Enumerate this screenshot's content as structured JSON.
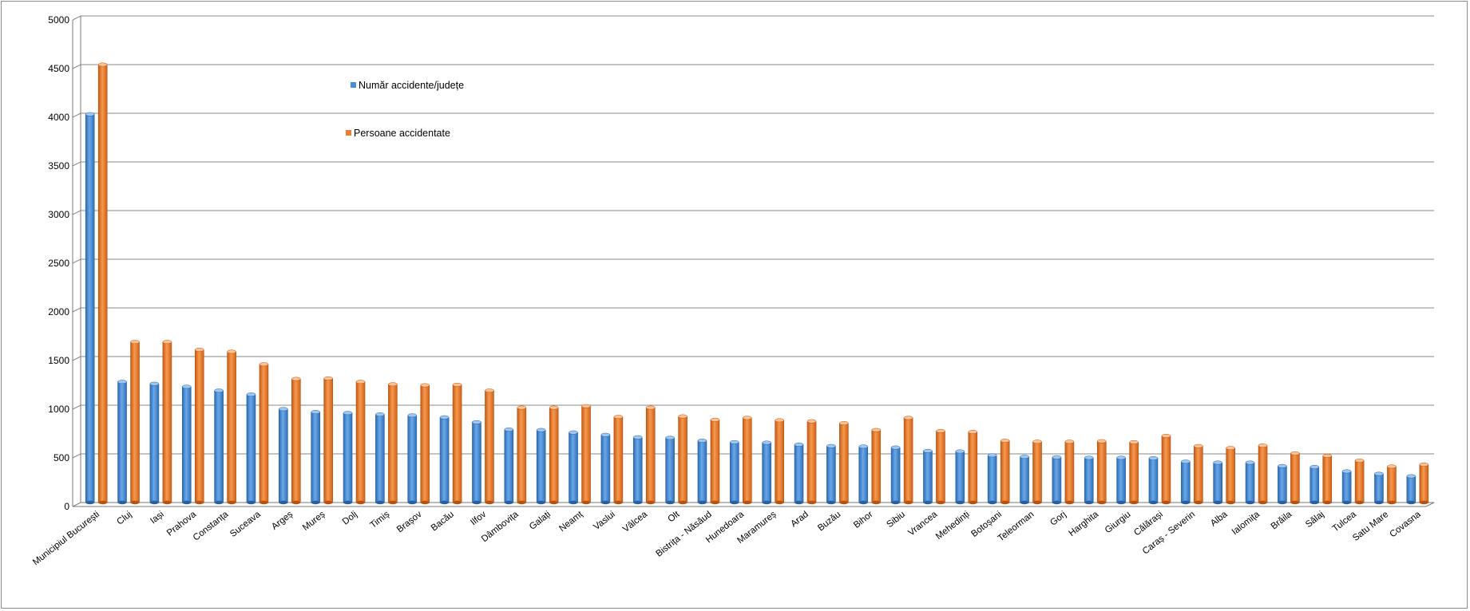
{
  "chart_data": {
    "type": "bar",
    "title": "",
    "xlabel": "",
    "ylabel": "",
    "ylim": [
      0,
      5000
    ],
    "yticks": [
      0,
      500,
      1000,
      1500,
      2000,
      2500,
      3000,
      3500,
      4000,
      4500,
      5000
    ],
    "grid": true,
    "legend_position": "top-left",
    "categories": [
      "Municipiul București",
      "Cluj",
      "Iași",
      "Prahova",
      "Constanța",
      "Suceava",
      "Argeș",
      "Mureș",
      "Dolj",
      "Timiș",
      "Brașov",
      "Bacău",
      "Ilfov",
      "Dâmbovița",
      "Galați",
      "Neamț",
      "Vaslui",
      "Vâlcea",
      "Olt",
      "Bistrița - Năsăud",
      "Hunedoara",
      "Maramureș",
      "Arad",
      "Buzău",
      "Bihor",
      "Sibiu",
      "Vrancea",
      "Mehedinți",
      "Botoșani",
      "Teleorman",
      "Gorj",
      "Harghita",
      "Giurgiu",
      "Călărași",
      "Caraș - Severin",
      "Alba",
      "Ialomița",
      "Brăila",
      "Sălaj",
      "Tulcea",
      "Satu  Mare",
      "Covasna"
    ],
    "series": [
      {
        "name": "Număr accidente/județe",
        "color": "#4a8fd6",
        "values": [
          3990,
          1240,
          1220,
          1190,
          1150,
          1110,
          960,
          930,
          920,
          905,
          895,
          875,
          825,
          750,
          745,
          720,
          695,
          670,
          665,
          635,
          620,
          615,
          595,
          580,
          575,
          565,
          530,
          525,
          485,
          470,
          465,
          460,
          460,
          455,
          420,
          410,
          410,
          375,
          365,
          320,
          295,
          270
        ]
      },
      {
        "name": "Persoane accidentate",
        "color": "#ee7d31",
        "values": [
          4500,
          1650,
          1650,
          1570,
          1550,
          1420,
          1270,
          1275,
          1240,
          1215,
          1205,
          1210,
          1150,
          975,
          975,
          990,
          880,
          975,
          885,
          850,
          870,
          845,
          835,
          815,
          745,
          870,
          735,
          725,
          635,
          625,
          625,
          630,
          620,
          685,
          580,
          560,
          585,
          505,
          480,
          430,
          370,
          390
        ]
      }
    ]
  }
}
